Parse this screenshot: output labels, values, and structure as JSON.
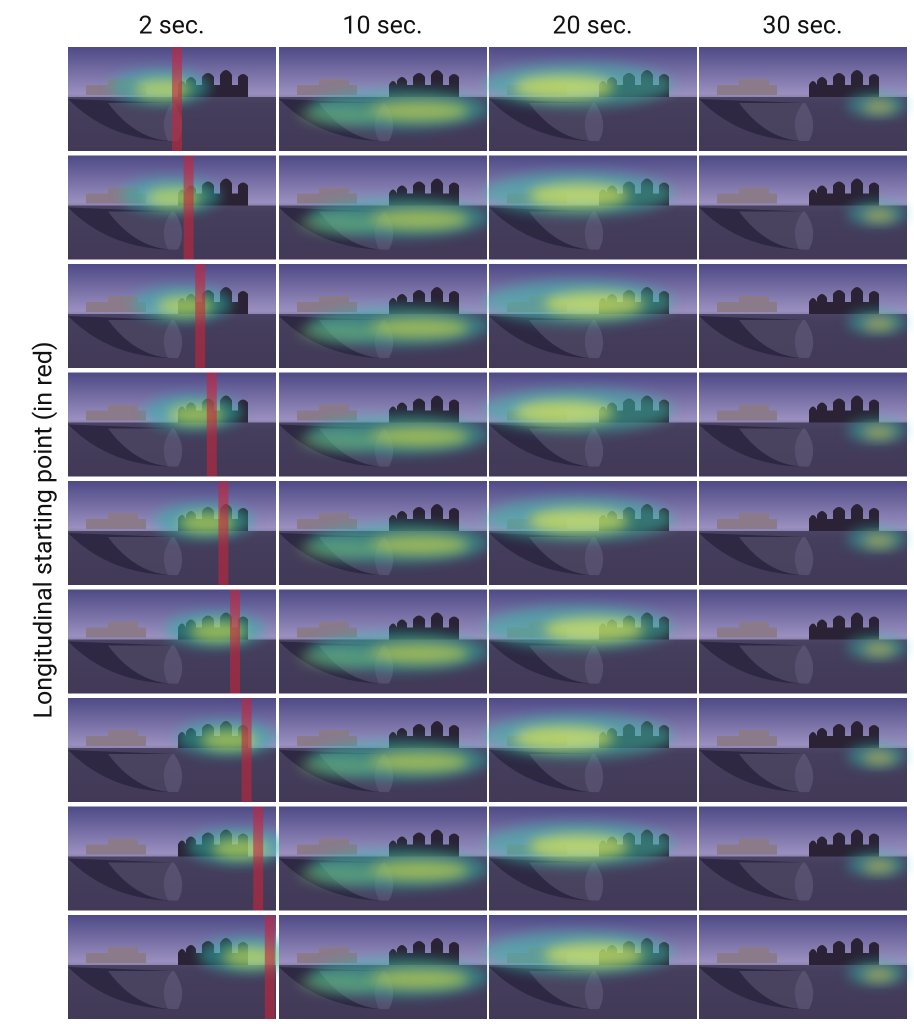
{
  "header": {
    "columns": [
      "2 sec.",
      "10 sec.",
      "20 sec.",
      "30 sec."
    ]
  },
  "y_label": "Longitudinal starting point (in red)"
}
